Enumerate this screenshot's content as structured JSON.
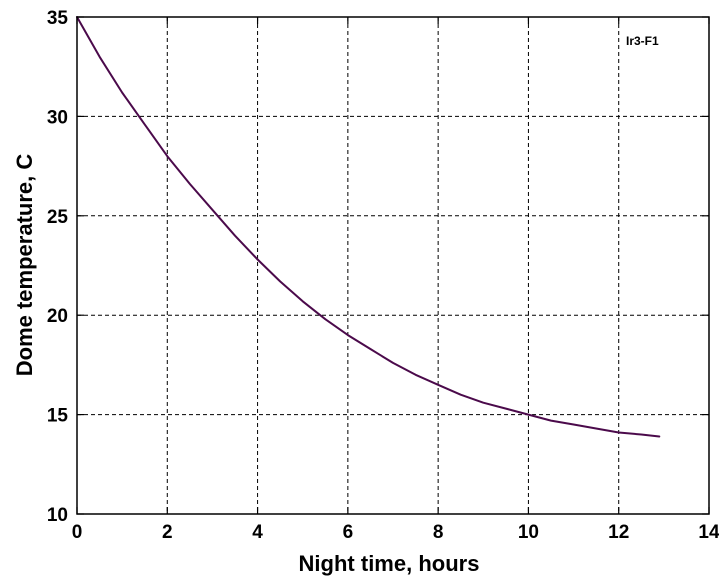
{
  "chart_data": {
    "type": "line",
    "title": "",
    "xlabel": "Night time, hours",
    "ylabel": "Dome temperature, C",
    "xlim": [
      0,
      14
    ],
    "ylim": [
      10,
      35
    ],
    "xticks": [
      0,
      2,
      4,
      6,
      8,
      10,
      12,
      14
    ],
    "yticks": [
      10,
      15,
      20,
      25,
      30,
      35
    ],
    "grid": true,
    "annotation": "Ir3-F1",
    "line_color": "#4b0a4b",
    "series": [
      {
        "x": [
          0,
          0.5,
          1,
          1.5,
          2,
          2.5,
          3,
          3.5,
          4,
          4.5,
          5,
          5.5,
          6,
          6.5,
          7,
          7.5,
          8,
          8.5,
          9,
          9.5,
          10,
          10.5,
          11,
          11.5,
          12,
          12.5,
          12.9
        ],
        "values": [
          35.0,
          33.0,
          31.2,
          29.6,
          28.0,
          26.6,
          25.3,
          24.0,
          22.8,
          21.7,
          20.7,
          19.8,
          19.0,
          18.3,
          17.6,
          17.0,
          16.5,
          16.0,
          15.6,
          15.3,
          15.0,
          14.7,
          14.5,
          14.3,
          14.1,
          14.0,
          13.9
        ]
      }
    ]
  }
}
